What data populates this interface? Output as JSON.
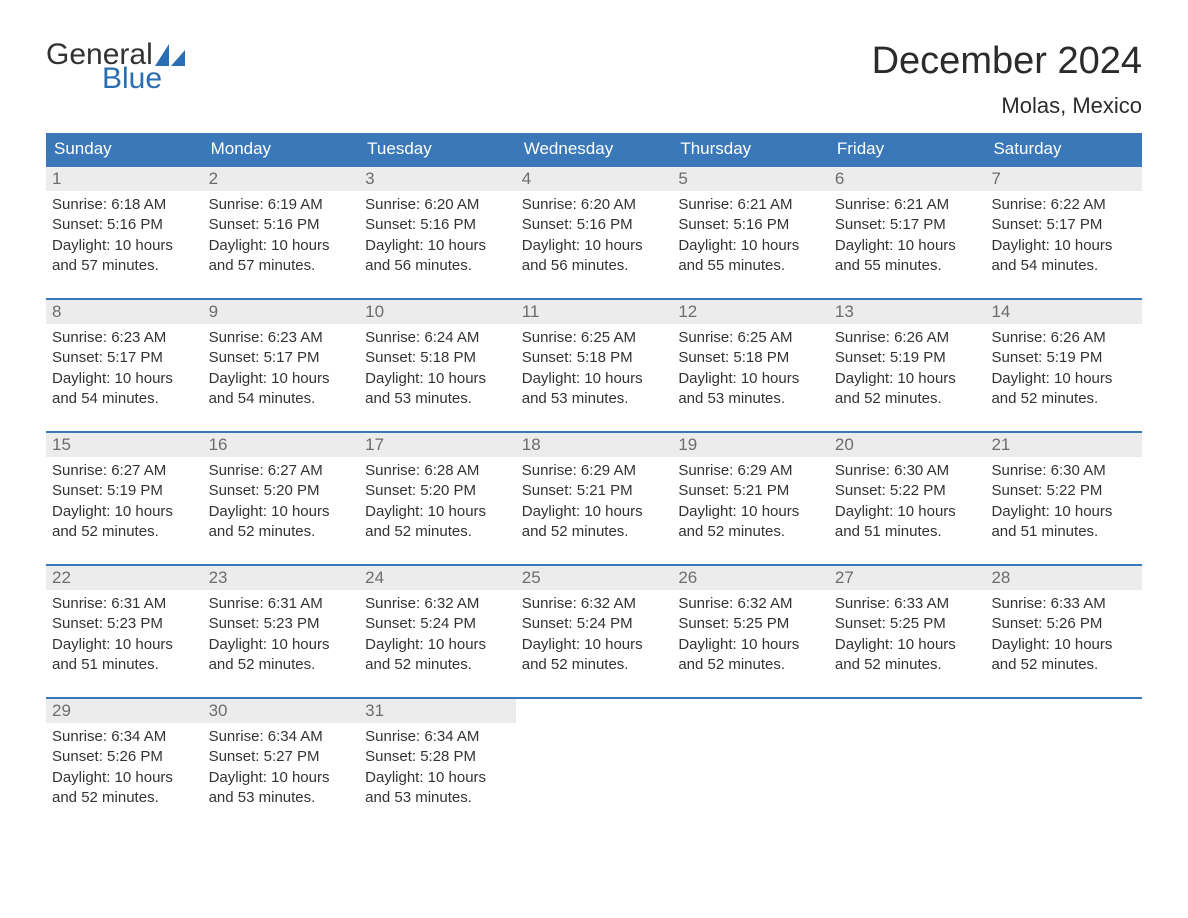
{
  "logo": {
    "word1": "General",
    "word2": "Blue",
    "word1_color": "#333333",
    "word2_color": "#2a6db3",
    "sail_color": "#2a6db3"
  },
  "title": "December 2024",
  "location": "Molas, Mexico",
  "colors": {
    "header_bg": "#3a78b9",
    "header_text": "#ffffff",
    "daynum_bg": "#ececec",
    "daynum_text": "#6d6d6d",
    "body_text": "#333333",
    "week_border": "#3a78b9",
    "page_bg": "#ffffff"
  },
  "fonts": {
    "title_size_pt": 29,
    "location_size_pt": 17,
    "dow_size_pt": 13,
    "daynum_size_pt": 13,
    "body_size_pt": 11
  },
  "dow": [
    "Sunday",
    "Monday",
    "Tuesday",
    "Wednesday",
    "Thursday",
    "Friday",
    "Saturday"
  ],
  "labels": {
    "sunrise": "Sunrise:",
    "sunset": "Sunset:",
    "daylight": "Daylight:"
  },
  "weeks": [
    [
      {
        "n": "1",
        "sunrise": "6:18 AM",
        "sunset": "5:16 PM",
        "daylight": "10 hours and 57 minutes."
      },
      {
        "n": "2",
        "sunrise": "6:19 AM",
        "sunset": "5:16 PM",
        "daylight": "10 hours and 57 minutes."
      },
      {
        "n": "3",
        "sunrise": "6:20 AM",
        "sunset": "5:16 PM",
        "daylight": "10 hours and 56 minutes."
      },
      {
        "n": "4",
        "sunrise": "6:20 AM",
        "sunset": "5:16 PM",
        "daylight": "10 hours and 56 minutes."
      },
      {
        "n": "5",
        "sunrise": "6:21 AM",
        "sunset": "5:16 PM",
        "daylight": "10 hours and 55 minutes."
      },
      {
        "n": "6",
        "sunrise": "6:21 AM",
        "sunset": "5:17 PM",
        "daylight": "10 hours and 55 minutes."
      },
      {
        "n": "7",
        "sunrise": "6:22 AM",
        "sunset": "5:17 PM",
        "daylight": "10 hours and 54 minutes."
      }
    ],
    [
      {
        "n": "8",
        "sunrise": "6:23 AM",
        "sunset": "5:17 PM",
        "daylight": "10 hours and 54 minutes."
      },
      {
        "n": "9",
        "sunrise": "6:23 AM",
        "sunset": "5:17 PM",
        "daylight": "10 hours and 54 minutes."
      },
      {
        "n": "10",
        "sunrise": "6:24 AM",
        "sunset": "5:18 PM",
        "daylight": "10 hours and 53 minutes."
      },
      {
        "n": "11",
        "sunrise": "6:25 AM",
        "sunset": "5:18 PM",
        "daylight": "10 hours and 53 minutes."
      },
      {
        "n": "12",
        "sunrise": "6:25 AM",
        "sunset": "5:18 PM",
        "daylight": "10 hours and 53 minutes."
      },
      {
        "n": "13",
        "sunrise": "6:26 AM",
        "sunset": "5:19 PM",
        "daylight": "10 hours and 52 minutes."
      },
      {
        "n": "14",
        "sunrise": "6:26 AM",
        "sunset": "5:19 PM",
        "daylight": "10 hours and 52 minutes."
      }
    ],
    [
      {
        "n": "15",
        "sunrise": "6:27 AM",
        "sunset": "5:19 PM",
        "daylight": "10 hours and 52 minutes."
      },
      {
        "n": "16",
        "sunrise": "6:27 AM",
        "sunset": "5:20 PM",
        "daylight": "10 hours and 52 minutes."
      },
      {
        "n": "17",
        "sunrise": "6:28 AM",
        "sunset": "5:20 PM",
        "daylight": "10 hours and 52 minutes."
      },
      {
        "n": "18",
        "sunrise": "6:29 AM",
        "sunset": "5:21 PM",
        "daylight": "10 hours and 52 minutes."
      },
      {
        "n": "19",
        "sunrise": "6:29 AM",
        "sunset": "5:21 PM",
        "daylight": "10 hours and 52 minutes."
      },
      {
        "n": "20",
        "sunrise": "6:30 AM",
        "sunset": "5:22 PM",
        "daylight": "10 hours and 51 minutes."
      },
      {
        "n": "21",
        "sunrise": "6:30 AM",
        "sunset": "5:22 PM",
        "daylight": "10 hours and 51 minutes."
      }
    ],
    [
      {
        "n": "22",
        "sunrise": "6:31 AM",
        "sunset": "5:23 PM",
        "daylight": "10 hours and 51 minutes."
      },
      {
        "n": "23",
        "sunrise": "6:31 AM",
        "sunset": "5:23 PM",
        "daylight": "10 hours and 52 minutes."
      },
      {
        "n": "24",
        "sunrise": "6:32 AM",
        "sunset": "5:24 PM",
        "daylight": "10 hours and 52 minutes."
      },
      {
        "n": "25",
        "sunrise": "6:32 AM",
        "sunset": "5:24 PM",
        "daylight": "10 hours and 52 minutes."
      },
      {
        "n": "26",
        "sunrise": "6:32 AM",
        "sunset": "5:25 PM",
        "daylight": "10 hours and 52 minutes."
      },
      {
        "n": "27",
        "sunrise": "6:33 AM",
        "sunset": "5:25 PM",
        "daylight": "10 hours and 52 minutes."
      },
      {
        "n": "28",
        "sunrise": "6:33 AM",
        "sunset": "5:26 PM",
        "daylight": "10 hours and 52 minutes."
      }
    ],
    [
      {
        "n": "29",
        "sunrise": "6:34 AM",
        "sunset": "5:26 PM",
        "daylight": "10 hours and 52 minutes."
      },
      {
        "n": "30",
        "sunrise": "6:34 AM",
        "sunset": "5:27 PM",
        "daylight": "10 hours and 53 minutes."
      },
      {
        "n": "31",
        "sunrise": "6:34 AM",
        "sunset": "5:28 PM",
        "daylight": "10 hours and 53 minutes."
      },
      null,
      null,
      null,
      null
    ]
  ]
}
